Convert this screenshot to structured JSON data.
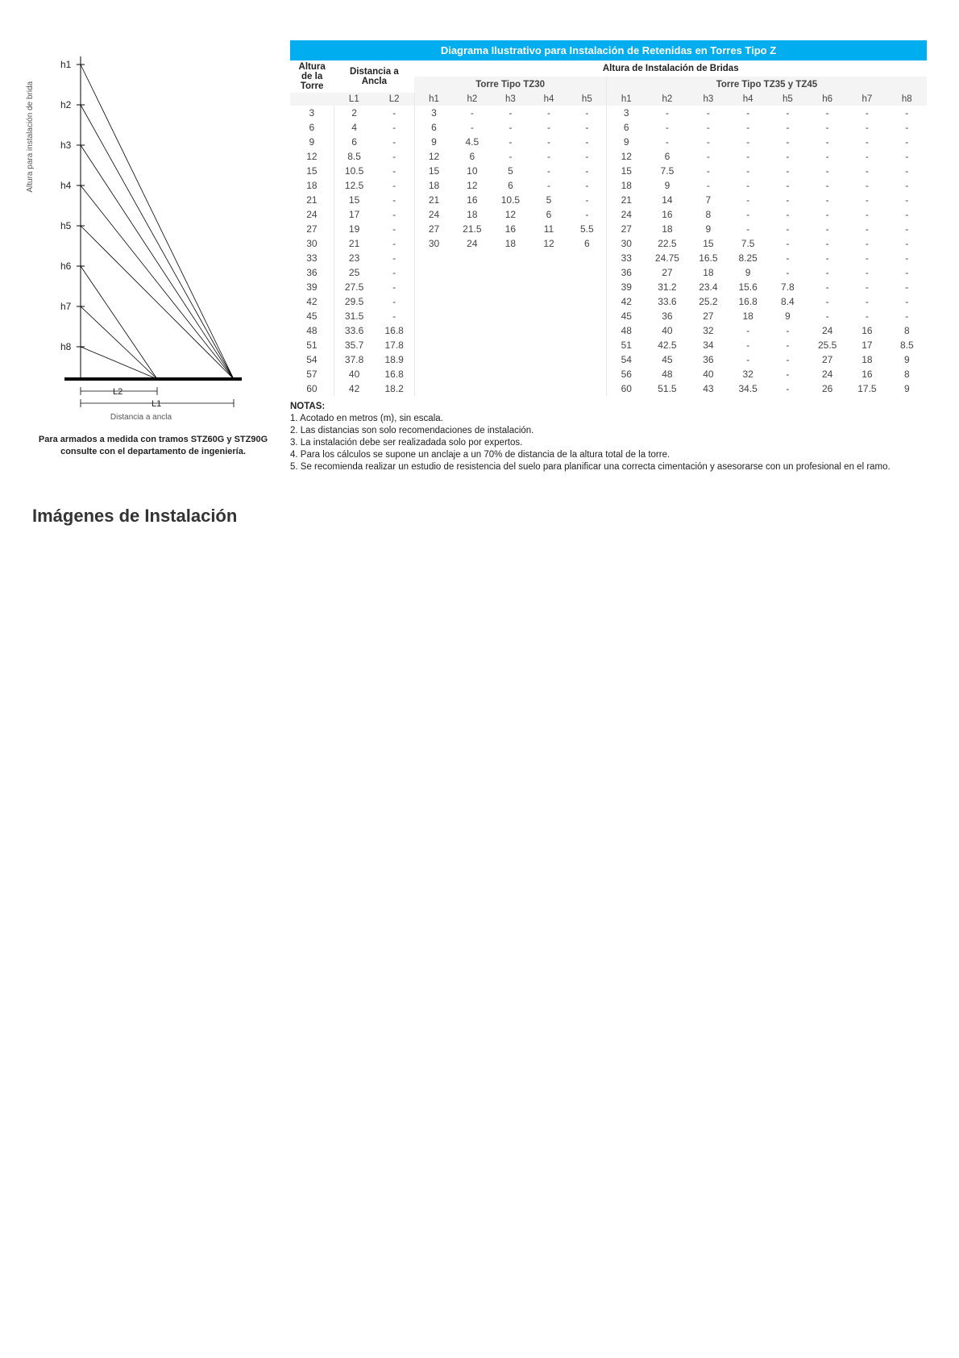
{
  "colors": {
    "title_bar_bg": "#00aeef",
    "title_bar_text": "#ffffff",
    "text": "#333333",
    "subhdr_bg": "#f4f4f4",
    "diagram_stroke": "#000000"
  },
  "diagram": {
    "y_axis_label": "Altura para instalación de brida",
    "x_axis_label": "Distancia a ancla",
    "h_labels": [
      "h1",
      "h2",
      "h3",
      "h4",
      "h5",
      "h6",
      "h7",
      "h8"
    ],
    "L_labels": [
      "L2",
      "L1"
    ],
    "note": "Para armados a medida con tramos STZ60G y STZ90G consulte con el departamento de ingeniería."
  },
  "table": {
    "title": "Diagrama Ilustrativo para Instalación de Retenidas en Torres Tipo Z",
    "header_group_left": "Altura de la Torre",
    "header_group_mid": "Distancia a Ancla",
    "header_group_right": "Altura de Instalación de Bridas",
    "sub_tz30": "Torre Tipo TZ30",
    "sub_tz3545": "Torre Tipo TZ35 y TZ45",
    "cols_mid": [
      "L1",
      "L2"
    ],
    "cols_tz30": [
      "h1",
      "h2",
      "h3",
      "h4",
      "h5"
    ],
    "cols_tz3545": [
      "h1",
      "h2",
      "h3",
      "h4",
      "h5",
      "h6",
      "h7",
      "h8"
    ],
    "rows": [
      {
        "alt": "3",
        "L": [
          "2",
          "-"
        ],
        "tz30": [
          "3",
          "-",
          "-",
          "-",
          "-"
        ],
        "tz45": [
          "3",
          "-",
          "-",
          "-",
          "-",
          "-",
          "-",
          "-"
        ]
      },
      {
        "alt": "6",
        "L": [
          "4",
          "-"
        ],
        "tz30": [
          "6",
          "-",
          "-",
          "-",
          "-"
        ],
        "tz45": [
          "6",
          "-",
          "-",
          "-",
          "-",
          "-",
          "-",
          "-"
        ]
      },
      {
        "alt": "9",
        "L": [
          "6",
          "-"
        ],
        "tz30": [
          "9",
          "4.5",
          "-",
          "-",
          "-"
        ],
        "tz45": [
          "9",
          "-",
          "-",
          "-",
          "-",
          "-",
          "-",
          "-"
        ]
      },
      {
        "alt": "12",
        "L": [
          "8.5",
          "-"
        ],
        "tz30": [
          "12",
          "6",
          "-",
          "-",
          "-"
        ],
        "tz45": [
          "12",
          "6",
          "-",
          "-",
          "-",
          "-",
          "-",
          "-"
        ]
      },
      {
        "alt": "15",
        "L": [
          "10.5",
          "-"
        ],
        "tz30": [
          "15",
          "10",
          "5",
          "-",
          "-"
        ],
        "tz45": [
          "15",
          "7.5",
          "-",
          "-",
          "-",
          "-",
          "-",
          "-"
        ]
      },
      {
        "alt": "18",
        "L": [
          "12.5",
          "-"
        ],
        "tz30": [
          "18",
          "12",
          "6",
          "-",
          "-"
        ],
        "tz45": [
          "18",
          "9",
          "-",
          "-",
          "-",
          "-",
          "-",
          "-"
        ]
      },
      {
        "alt": "21",
        "L": [
          "15",
          "-"
        ],
        "tz30": [
          "21",
          "16",
          "10.5",
          "5",
          "-"
        ],
        "tz45": [
          "21",
          "14",
          "7",
          "-",
          "-",
          "-",
          "-",
          "-"
        ]
      },
      {
        "alt": "24",
        "L": [
          "17",
          "-"
        ],
        "tz30": [
          "24",
          "18",
          "12",
          "6",
          "-"
        ],
        "tz45": [
          "24",
          "16",
          "8",
          "-",
          "-",
          "-",
          "-",
          "-"
        ]
      },
      {
        "alt": "27",
        "L": [
          "19",
          "-"
        ],
        "tz30": [
          "27",
          "21.5",
          "16",
          "11",
          "5.5"
        ],
        "tz45": [
          "27",
          "18",
          "9",
          "-",
          "-",
          "-",
          "-",
          "-"
        ]
      },
      {
        "alt": "30",
        "L": [
          "21",
          "-"
        ],
        "tz30": [
          "30",
          "24",
          "18",
          "12",
          "6"
        ],
        "tz45": [
          "30",
          "22.5",
          "15",
          "7.5",
          "-",
          "-",
          "-",
          "-"
        ]
      },
      {
        "alt": "33",
        "L": [
          "23",
          "-"
        ],
        "tz30": [
          "",
          "",
          "",
          "",
          ""
        ],
        "tz45": [
          "33",
          "24.75",
          "16.5",
          "8.25",
          "-",
          "-",
          "-",
          "-"
        ]
      },
      {
        "alt": "36",
        "L": [
          "25",
          "-"
        ],
        "tz30": [
          "",
          "",
          "",
          "",
          ""
        ],
        "tz45": [
          "36",
          "27",
          "18",
          "9",
          "-",
          "-",
          "-",
          "-"
        ]
      },
      {
        "alt": "39",
        "L": [
          "27.5",
          "-"
        ],
        "tz30": [
          "",
          "",
          "",
          "",
          ""
        ],
        "tz45": [
          "39",
          "31.2",
          "23.4",
          "15.6",
          "7.8",
          "-",
          "-",
          "-"
        ]
      },
      {
        "alt": "42",
        "L": [
          "29.5",
          "-"
        ],
        "tz30": [
          "",
          "",
          "",
          "",
          ""
        ],
        "tz45": [
          "42",
          "33.6",
          "25.2",
          "16.8",
          "8.4",
          "-",
          "-",
          "-"
        ]
      },
      {
        "alt": "45",
        "L": [
          "31.5",
          "-"
        ],
        "tz30": [
          "",
          "",
          "",
          "",
          ""
        ],
        "tz45": [
          "45",
          "36",
          "27",
          "18",
          "9",
          "-",
          "-",
          "-"
        ]
      },
      {
        "alt": "48",
        "L": [
          "33.6",
          "16.8"
        ],
        "tz30": [
          "",
          "",
          "",
          "",
          ""
        ],
        "tz45": [
          "48",
          "40",
          "32",
          "-",
          "-",
          "24",
          "16",
          "8"
        ]
      },
      {
        "alt": "51",
        "L": [
          "35.7",
          "17.8"
        ],
        "tz30": [
          "",
          "",
          "",
          "",
          ""
        ],
        "tz45": [
          "51",
          "42.5",
          "34",
          "-",
          "-",
          "25.5",
          "17",
          "8.5"
        ]
      },
      {
        "alt": "54",
        "L": [
          "37.8",
          "18.9"
        ],
        "tz30": [
          "",
          "",
          "",
          "",
          ""
        ],
        "tz45": [
          "54",
          "45",
          "36",
          "-",
          "-",
          "27",
          "18",
          "9"
        ]
      },
      {
        "alt": "57",
        "L": [
          "40",
          "16.8"
        ],
        "tz30": [
          "",
          "",
          "",
          "",
          ""
        ],
        "tz45": [
          "56",
          "48",
          "40",
          "32",
          "-",
          "24",
          "16",
          "8"
        ]
      },
      {
        "alt": "60",
        "L": [
          "42",
          "18.2"
        ],
        "tz30": [
          "",
          "",
          "",
          "",
          ""
        ],
        "tz45": [
          "60",
          "51.5",
          "43",
          "34.5",
          "-",
          "26",
          "17.5",
          "9"
        ]
      }
    ]
  },
  "notes": {
    "title": "NOTAS:",
    "items": [
      "1. Acotado en metros (m), sin escala.",
      "2. Las distancias son solo recomendaciones de instalación.",
      "3. La instalación debe ser realizadada solo por expertos.",
      "4. Para los cálculos se supone un anclaje a un 70% de distancia de la altura total de la torre.",
      "5. Se recomienda realizar un estudio de resistencia del suelo para planificar una correcta cimentación y asesorarse con un profesional en el ramo."
    ]
  },
  "section_heading": "Imágenes de Instalación"
}
